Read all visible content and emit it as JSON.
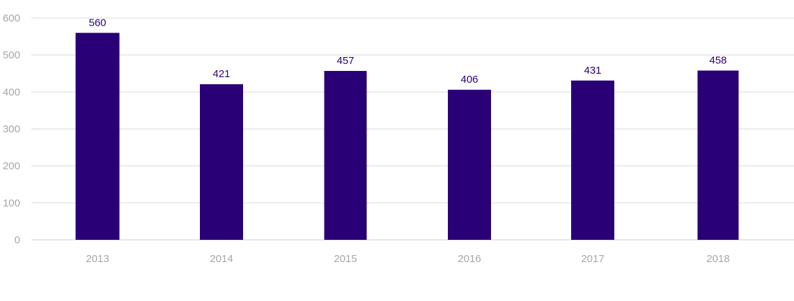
{
  "chart_data": {
    "type": "bar",
    "title": "",
    "xlabel": "",
    "ylabel": "",
    "categories": [
      "2013",
      "2014",
      "2015",
      "2016",
      "2017",
      "2018"
    ],
    "values": [
      560,
      421,
      457,
      406,
      431,
      458
    ],
    "ylim": [
      0,
      600
    ],
    "yticks": [
      0,
      100,
      200,
      300,
      400,
      500,
      600
    ],
    "grid": true,
    "legend": "none",
    "data_labels": true,
    "colors": {
      "bar": "#2a0077",
      "data_label": "#2a0077",
      "tick_label": "#a6a6a6",
      "grid": "#d9d9d9"
    }
  }
}
